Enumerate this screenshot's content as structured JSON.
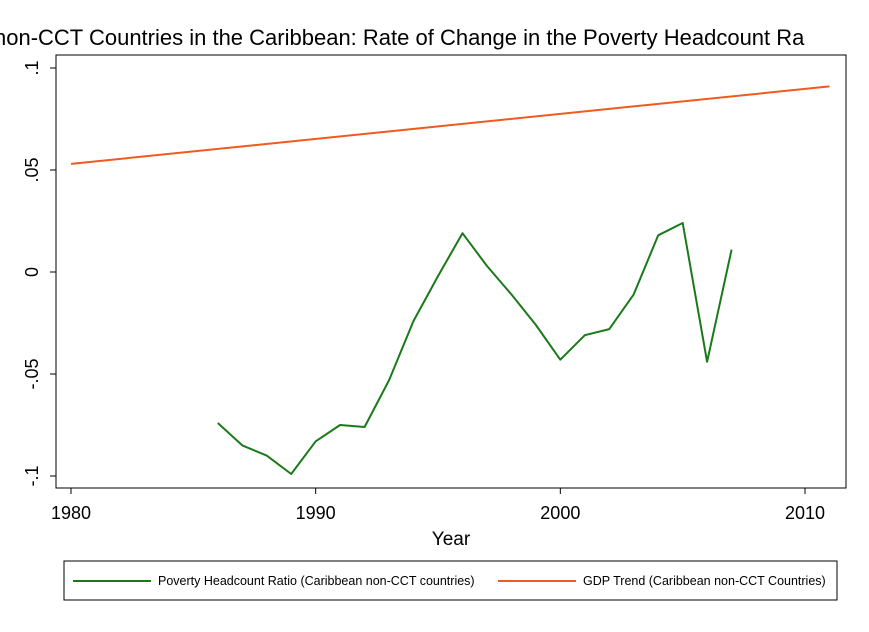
{
  "chart_data": {
    "type": "line",
    "title": "non-CCT Countries in the Caribbean: Rate of Change in the Poverty Headcount Ra",
    "xlabel": "Year",
    "ylabel": "",
    "xlim": [
      1980,
      2012
    ],
    "ylim": [
      -0.105,
      0.105
    ],
    "x_ticks": [
      1980,
      1990,
      2000,
      2010
    ],
    "x_tick_labels": [
      "1980",
      "1990",
      "2000",
      "2010"
    ],
    "y_ticks": [
      0.1,
      0.05,
      0,
      -0.05,
      -0.1
    ],
    "y_tick_labels": [
      ".1",
      ".05",
      "0",
      "-.05",
      "-.1"
    ],
    "grid": false,
    "legend_position": "bottom",
    "series": [
      {
        "name": "Poverty Headcount Ratio (Caribbean non-CCT countries)",
        "color": "#1a7a1a",
        "x": [
          1986,
          1987,
          1988,
          1989,
          1990,
          1991,
          1992,
          1993,
          1994,
          1995,
          1996,
          1997,
          1998,
          1999,
          2000,
          2001,
          2002,
          2003,
          2004,
          2005,
          2006,
          2007
        ],
        "values": [
          -0.074,
          -0.085,
          -0.09,
          -0.099,
          -0.083,
          -0.075,
          -0.076,
          -0.053,
          -0.024,
          -0.002,
          0.019,
          0.003,
          -0.011,
          -0.026,
          -0.043,
          -0.031,
          -0.028,
          -0.011,
          0.018,
          0.024,
          -0.044,
          0.011
        ]
      },
      {
        "name": "GDP Trend (Caribbean non-CCT Countries)",
        "color": "#f05a1e",
        "x": [
          1980,
          2011
        ],
        "values": [
          0.053,
          0.091
        ]
      }
    ]
  }
}
